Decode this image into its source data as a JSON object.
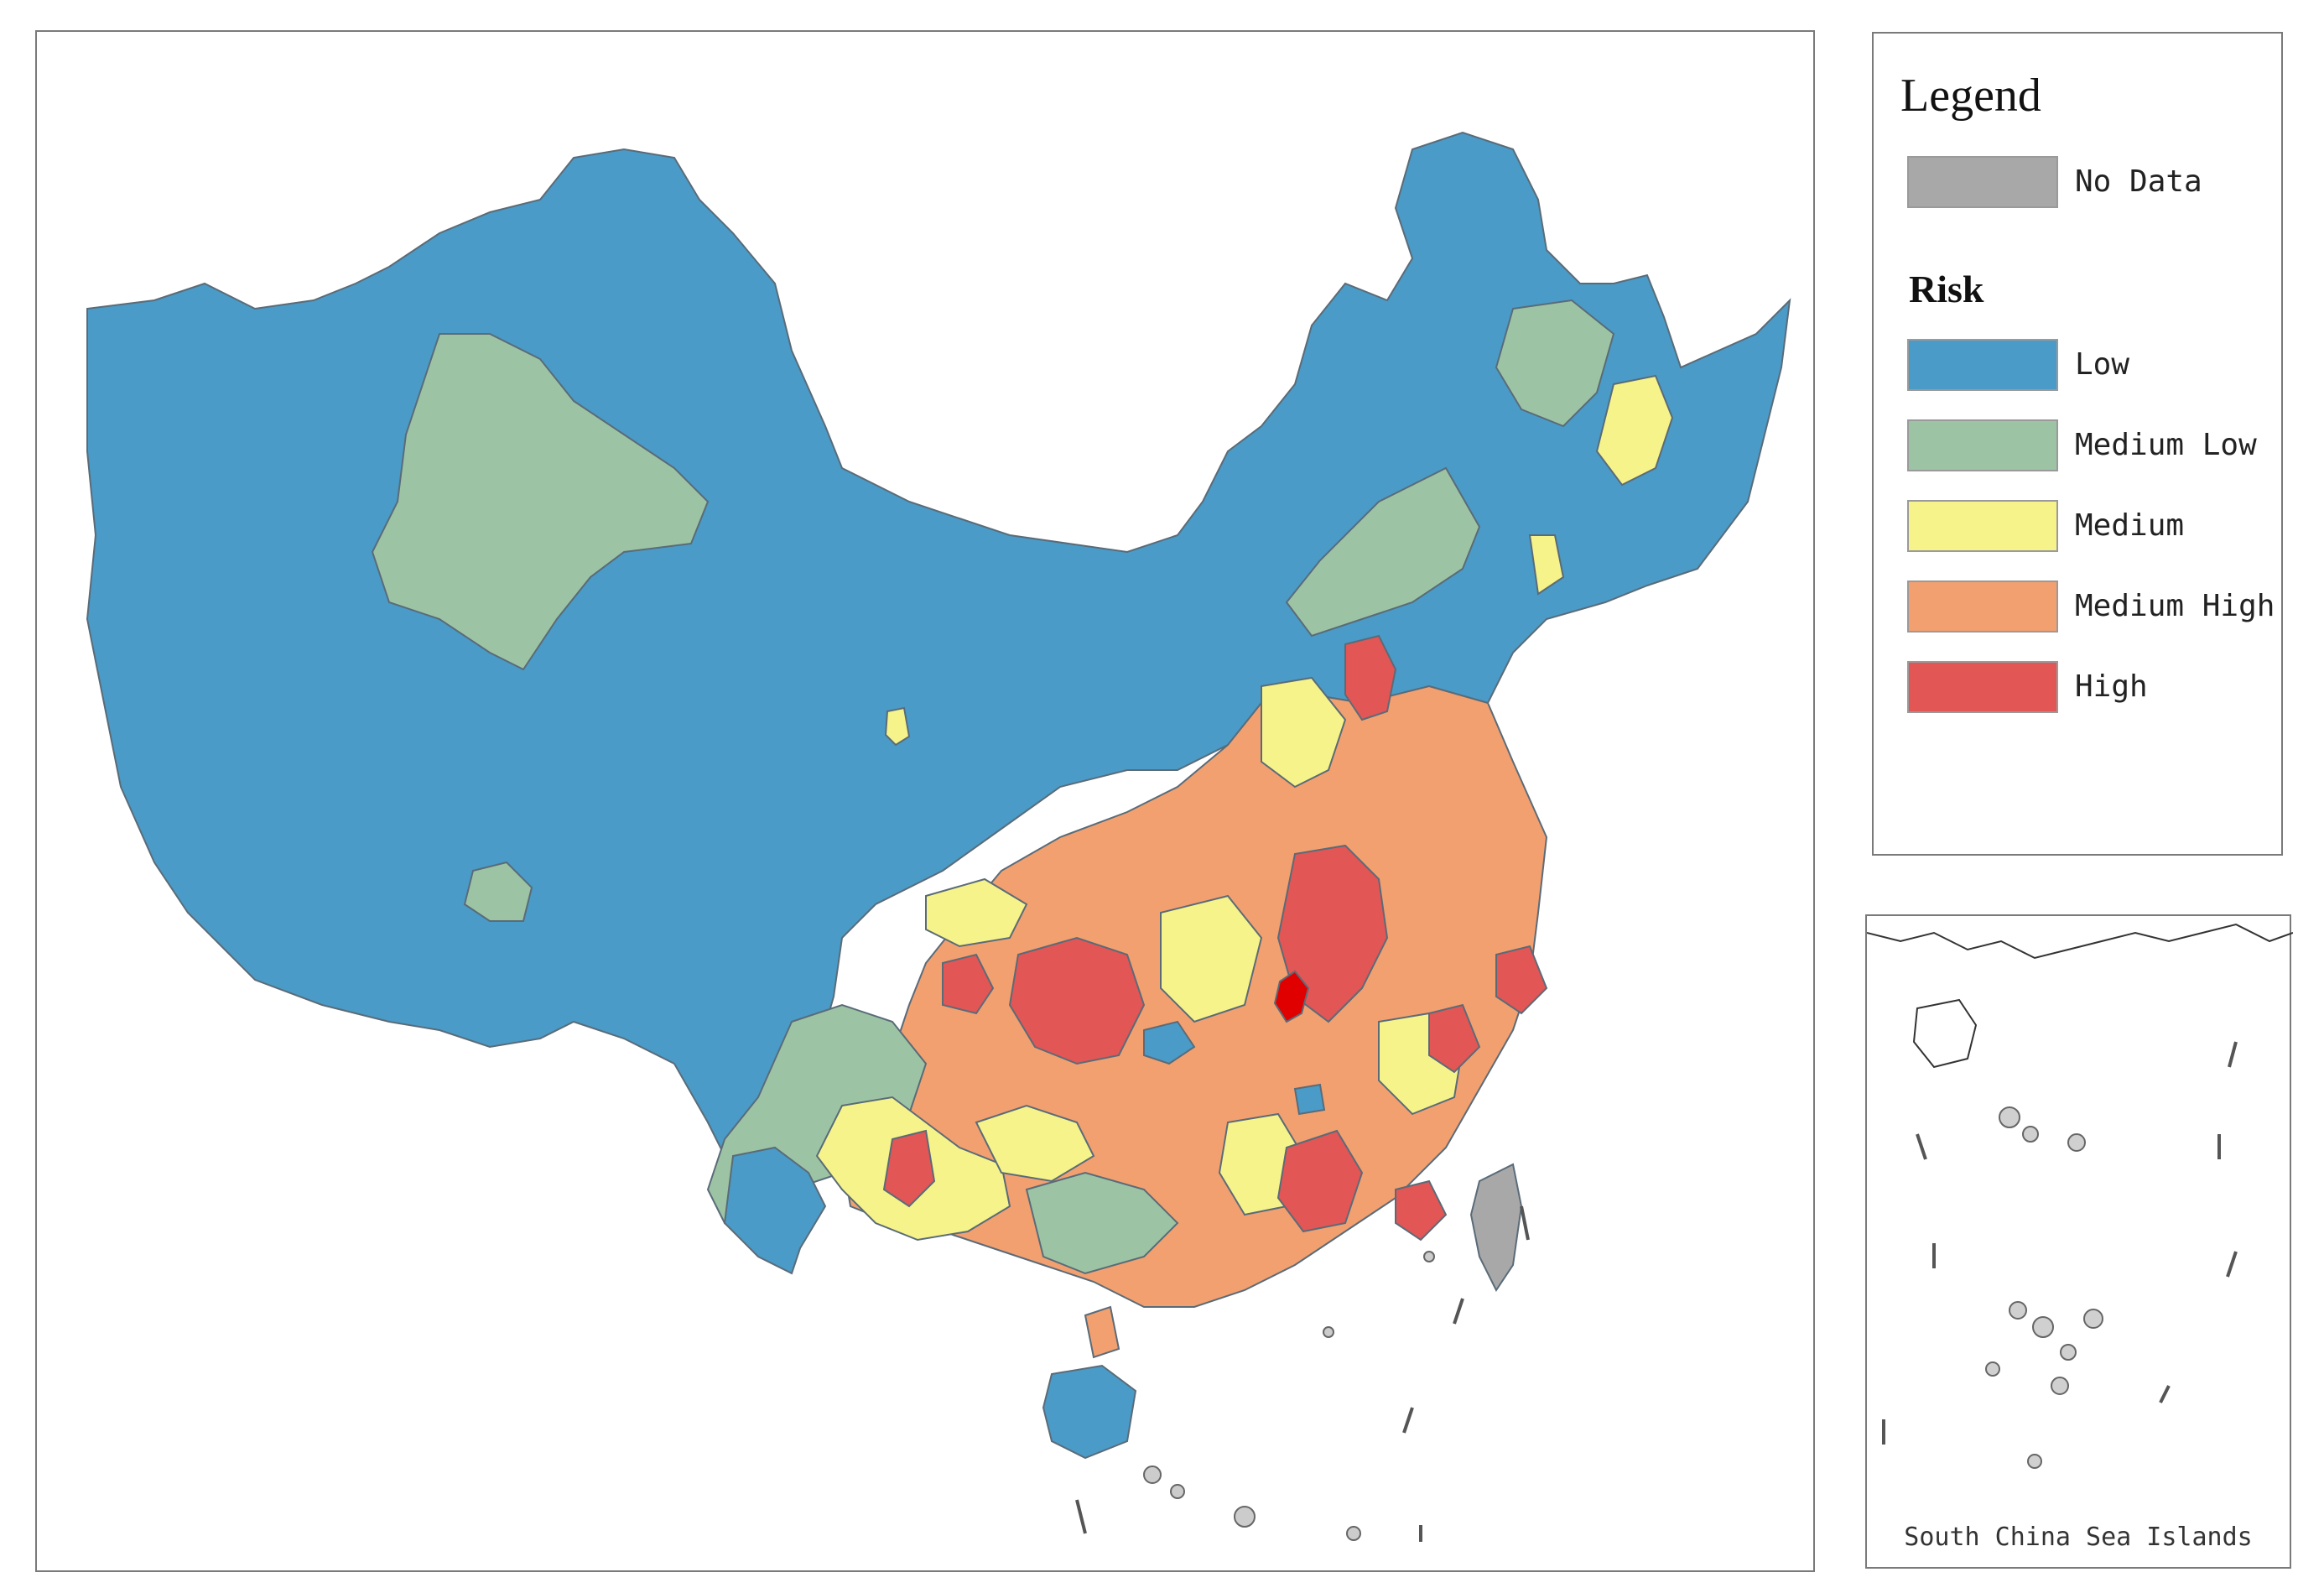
{
  "legend": {
    "title": "Legend",
    "no_data": {
      "label": "No Data",
      "color": "#a8a8a8"
    },
    "risk_title": "Risk",
    "items": [
      {
        "label": "Low",
        "color": "#4a9bc7"
      },
      {
        "label": "Medium Low",
        "color": "#9cc4a4"
      },
      {
        "label": "Medium",
        "color": "#f6f38a"
      },
      {
        "label": "Medium High",
        "color": "#f2a070"
      },
      {
        "label": "High",
        "color": "#e25655"
      }
    ]
  },
  "inset": {
    "caption": "South China Sea Islands"
  },
  "colors": {
    "border": "#5a6b78",
    "frame": "#7a7a7a",
    "hotspot": "#e00000"
  }
}
